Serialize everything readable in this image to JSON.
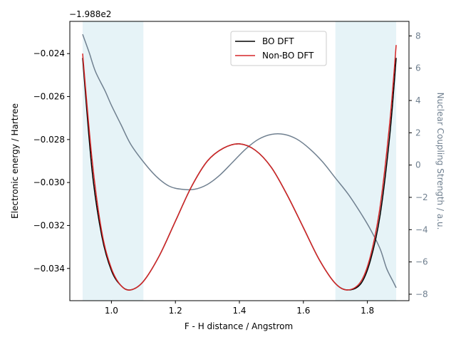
{
  "chart_data": {
    "type": "line",
    "xlabel": "F - H distance / Angstrom",
    "ylabel": "Electronic energy / Hartree",
    "y2label": "Nuclear Coupling Strength / a.u.",
    "y_offset_text": "−1.988e2",
    "xlim": [
      0.87,
      1.93
    ],
    "ylim": [
      -0.0355,
      -0.0225
    ],
    "y2lim": [
      -8.4,
      8.9
    ],
    "x_ticks": [
      1.0,
      1.2,
      1.4,
      1.6,
      1.8
    ],
    "x_tick_labels": [
      "1.0",
      "1.2",
      "1.4",
      "1.6",
      "1.8"
    ],
    "y_ticks": [
      -0.034,
      -0.032,
      -0.03,
      -0.028,
      -0.026,
      -0.024
    ],
    "y_tick_labels": [
      "−0.034",
      "−0.032",
      "−0.030",
      "−0.028",
      "−0.026",
      "−0.024"
    ],
    "y2_ticks": [
      -8,
      -6,
      -4,
      -2,
      0,
      2,
      4,
      6,
      8
    ],
    "y2_tick_labels": [
      "−8",
      "−6",
      "−4",
      "−2",
      "0",
      "2",
      "4",
      "6",
      "8"
    ],
    "shaded_regions": [
      [
        0.91,
        1.1
      ],
      [
        1.7,
        1.89
      ]
    ],
    "shade_color": "#add8e6",
    "legend_position": "top-center",
    "series": [
      {
        "name": "BO DFT",
        "color": "#000000",
        "axis": "left",
        "x": [
          0.91,
          0.94,
          0.97,
          1.0,
          1.03,
          1.06,
          1.1,
          1.15,
          1.2,
          1.25,
          1.3,
          1.35,
          1.4,
          1.45,
          1.5,
          1.55,
          1.6,
          1.65,
          1.7,
          1.74,
          1.78,
          1.81,
          1.84,
          1.87,
          1.89
        ],
        "y": [
          -0.0242,
          -0.0295,
          -0.0325,
          -0.0341,
          -0.0348,
          -0.035,
          -0.0346,
          -0.0334,
          -0.0318,
          -0.0302,
          -0.029,
          -0.0284,
          -0.0282,
          -0.0285,
          -0.0293,
          -0.0306,
          -0.0321,
          -0.0336,
          -0.0347,
          -0.035,
          -0.0347,
          -0.0336,
          -0.0315,
          -0.0278,
          -0.0242
        ]
      },
      {
        "name": "Non-BO DFT",
        "color": "#d62728",
        "axis": "left",
        "x": [
          0.91,
          0.94,
          0.97,
          1.0,
          1.03,
          1.06,
          1.1,
          1.15,
          1.2,
          1.25,
          1.3,
          1.35,
          1.4,
          1.45,
          1.5,
          1.55,
          1.6,
          1.65,
          1.7,
          1.74,
          1.78,
          1.81,
          1.84,
          1.87,
          1.89
        ],
        "y": [
          -0.024,
          -0.029,
          -0.0323,
          -0.034,
          -0.0348,
          -0.035,
          -0.0346,
          -0.0334,
          -0.0318,
          -0.0302,
          -0.029,
          -0.0284,
          -0.0282,
          -0.0285,
          -0.0293,
          -0.0306,
          -0.0321,
          -0.0336,
          -0.0347,
          -0.035,
          -0.0346,
          -0.0334,
          -0.0311,
          -0.0272,
          -0.0236
        ]
      },
      {
        "name": "Nuclear Coupling Strength",
        "color": "#708090",
        "axis": "right",
        "x": [
          0.91,
          0.93,
          0.95,
          0.98,
          1.0,
          1.03,
          1.06,
          1.1,
          1.14,
          1.18,
          1.22,
          1.26,
          1.3,
          1.34,
          1.38,
          1.42,
          1.46,
          1.5,
          1.54,
          1.58,
          1.62,
          1.66,
          1.7,
          1.74,
          1.78,
          1.81,
          1.84,
          1.86,
          1.88,
          1.89
        ],
        "y": [
          8.1,
          7.0,
          5.8,
          4.6,
          3.7,
          2.5,
          1.3,
          0.2,
          -0.7,
          -1.3,
          -1.5,
          -1.5,
          -1.2,
          -0.6,
          0.2,
          1.0,
          1.6,
          1.9,
          1.9,
          1.6,
          1.0,
          0.2,
          -0.8,
          -1.8,
          -3.0,
          -4.0,
          -5.2,
          -6.4,
          -7.2,
          -7.6
        ]
      }
    ]
  }
}
